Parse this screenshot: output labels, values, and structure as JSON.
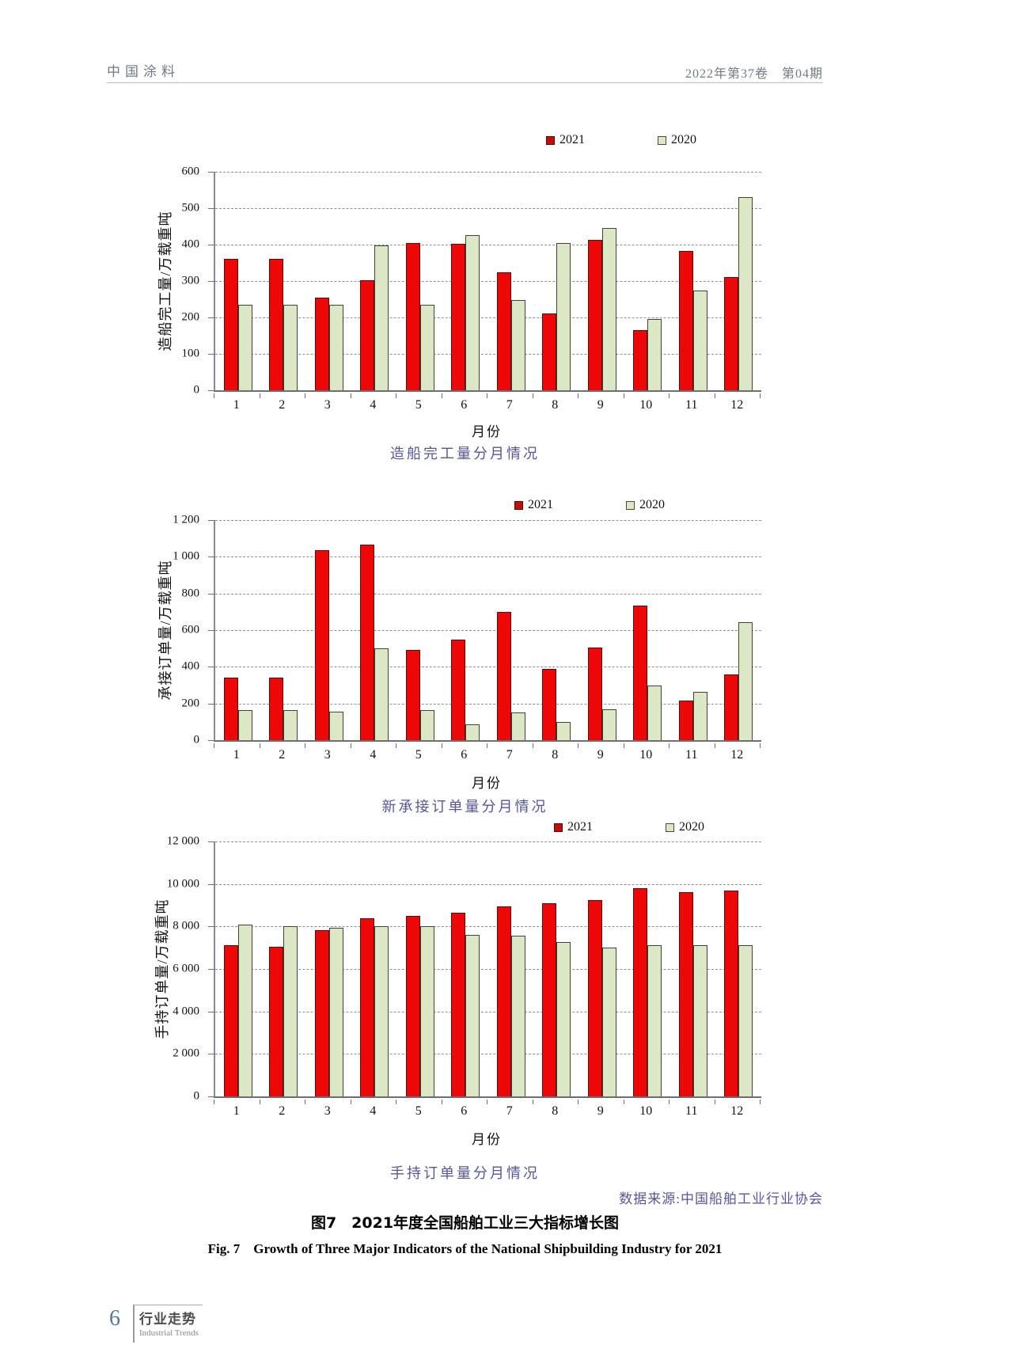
{
  "header": {
    "journal": "中国涂料",
    "issue": "2022年第37卷　第04期"
  },
  "chart_data": [
    {
      "type": "bar",
      "caption": "造船完工量分月情况",
      "ylabel": "造船完工量/万载重吨",
      "xlabel": "月份",
      "categories": [
        "1",
        "2",
        "3",
        "4",
        "5",
        "6",
        "7",
        "8",
        "9",
        "10",
        "11",
        "12"
      ],
      "series": [
        {
          "name": "2021",
          "color": "#ee0707",
          "values": [
            360,
            360,
            255,
            303,
            405,
            403,
            325,
            210,
            413,
            165,
            382,
            310
          ]
        },
        {
          "name": "2020",
          "color": "#dce7c5",
          "values": [
            235,
            235,
            235,
            398,
            235,
            427,
            247,
            405,
            445,
            195,
            273,
            530
          ]
        }
      ],
      "ylim": [
        0,
        600
      ],
      "ytick_step": 100,
      "ytick_labels": [
        "0",
        "100",
        "200",
        "300",
        "400",
        "500",
        "600"
      ],
      "grid": "dashed-horizontal",
      "legend_position": "top-right"
    },
    {
      "type": "bar",
      "caption": "新承接订单量分月情况",
      "ylabel": "承接订单量/万载重吨",
      "xlabel": "月份",
      "categories": [
        "1",
        "2",
        "3",
        "4",
        "5",
        "6",
        "7",
        "8",
        "9",
        "10",
        "11",
        "12"
      ],
      "series": [
        {
          "name": "2021",
          "color": "#ee0707",
          "values": [
            340,
            340,
            1035,
            1065,
            490,
            550,
            700,
            390,
            505,
            735,
            215,
            360
          ]
        },
        {
          "name": "2020",
          "color": "#dce7c5",
          "values": [
            165,
            165,
            155,
            500,
            165,
            85,
            150,
            100,
            170,
            300,
            265,
            645
          ]
        }
      ],
      "ylim": [
        0,
        1200
      ],
      "ytick_step": 200,
      "ytick_labels": [
        "0",
        "200",
        "400",
        "600",
        "800",
        "1 000",
        "1 200"
      ],
      "grid": "dashed-horizontal",
      "legend_position": "top-right"
    },
    {
      "type": "bar",
      "caption": "手持订单量分月情况",
      "ylabel": "手持订单量/万载重吨",
      "xlabel": "月份",
      "categories": [
        "1",
        "2",
        "3",
        "4",
        "5",
        "6",
        "7",
        "8",
        "9",
        "10",
        "11",
        "12"
      ],
      "series": [
        {
          "name": "2021",
          "color": "#ee0707",
          "values": [
            7100,
            7050,
            7820,
            8400,
            8480,
            8650,
            8950,
            9100,
            9250,
            9800,
            9600,
            9700
          ]
        },
        {
          "name": "2020",
          "color": "#dce7c5",
          "values": [
            8080,
            8000,
            7950,
            8030,
            8000,
            7600,
            7550,
            7250,
            7000,
            7100,
            7100,
            7100
          ]
        }
      ],
      "ylim": [
        0,
        12000
      ],
      "ytick_step": 2000,
      "ytick_labels": [
        "0",
        "2 000",
        "4 000",
        "6 000",
        "8 000",
        "10 000",
        "12 000"
      ],
      "grid": "dashed-horizontal",
      "legend_position": "top-right"
    }
  ],
  "source_note": "数据来源:中国船舶工业行业协会",
  "figure": {
    "caption_cn": "图7　2021年度全国船舶工业三大指标增长图",
    "caption_en": "Fig. 7　Growth of Three Major Indicators of the National Shipbuilding Industry for 2021"
  },
  "footer": {
    "page": "6",
    "section": "行业走势",
    "section_en": "Industrial Trends"
  }
}
